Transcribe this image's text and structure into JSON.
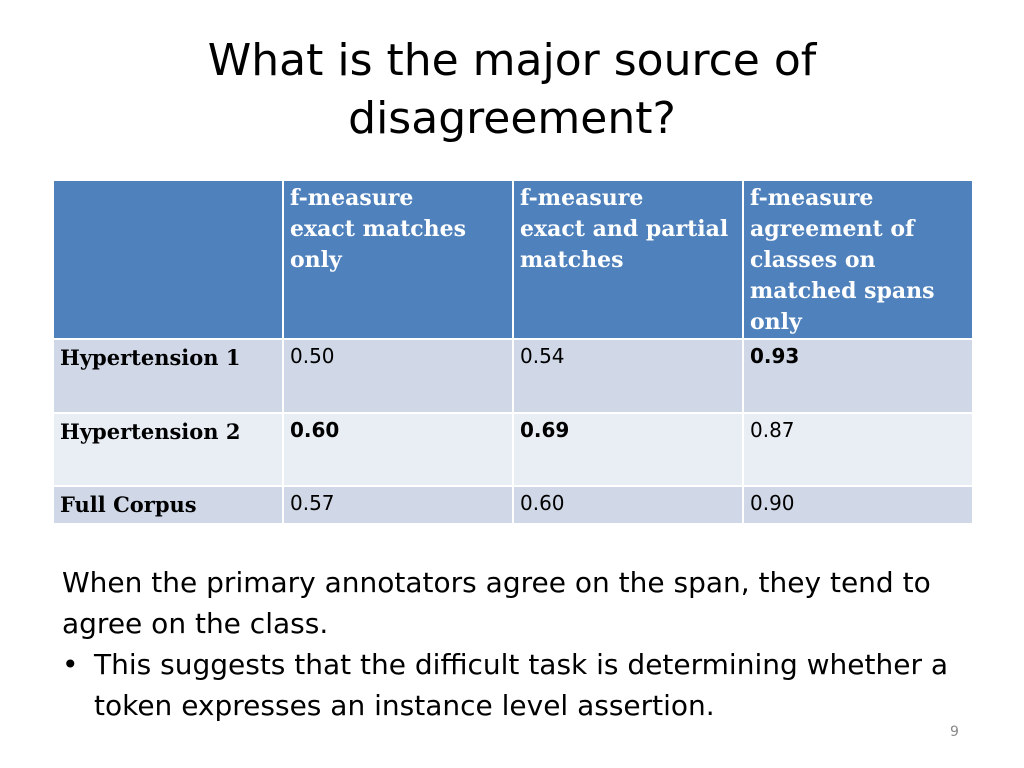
{
  "title": {
    "line1": "What is the major source of",
    "line2": "disagreement?"
  },
  "table": {
    "headers": [
      "",
      "f-measure\nexact matches\nonly",
      "f-measure\nexact and partial\nmatches",
      "f-measure\nagreement of\nclasses on\nmatched spans\nonly"
    ],
    "rows": [
      {
        "label": "Hypertension 1",
        "values": [
          "0.50",
          "0.54",
          "0.93"
        ],
        "bold": [
          false,
          false,
          true
        ]
      },
      {
        "label": "Hypertension 2",
        "values": [
          "0.60",
          "0.69",
          "0.87"
        ],
        "bold": [
          true,
          true,
          false
        ]
      },
      {
        "label": "Full Corpus",
        "values": [
          "0.57",
          "0.60",
          "0.90"
        ],
        "bold": [
          false,
          false,
          false
        ]
      }
    ]
  },
  "body": {
    "paragraph": "When the primary annotators agree on the span, they tend to agree on the class.",
    "bullet_symbol": "•",
    "bullet": "This suggests that the difficult task is determining whether a token expresses an instance level assertion."
  },
  "page_number": "9"
}
